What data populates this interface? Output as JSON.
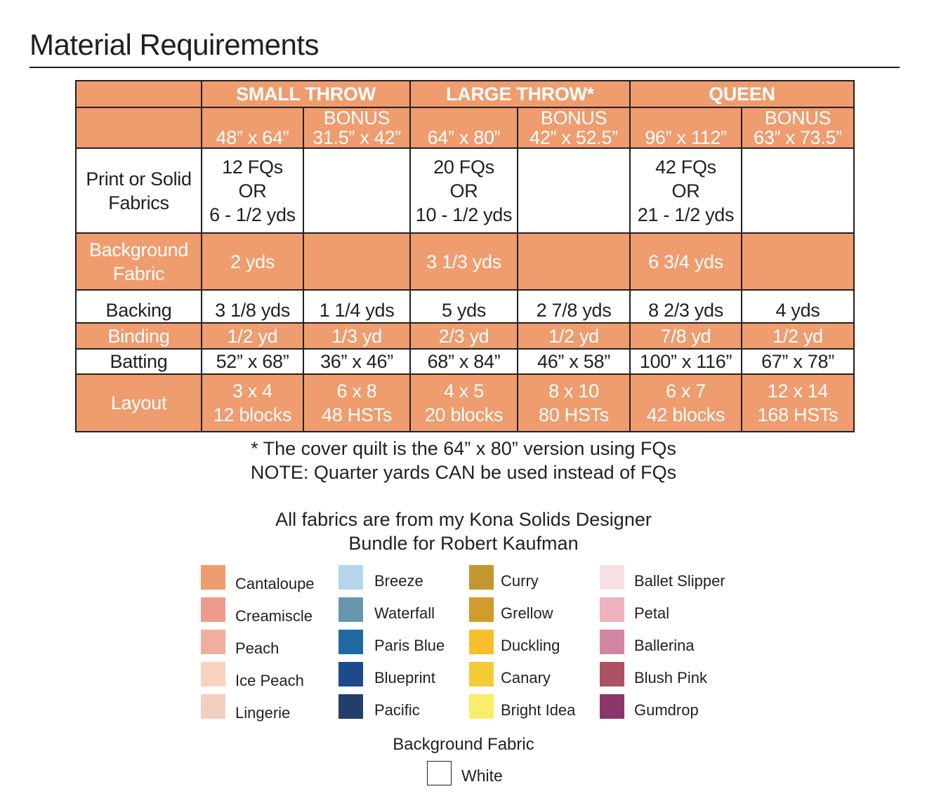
{
  "title": "Material Requirements",
  "table": {
    "groups": [
      "SMALL THROW",
      "LARGE THROW*",
      "QUEEN"
    ],
    "sizes": [
      {
        "bonus": "",
        "size": "48” x 64”"
      },
      {
        "bonus": "BONUS",
        "size": "31.5” x 42”"
      },
      {
        "bonus": "",
        "size": "64” x 80”"
      },
      {
        "bonus": "BONUS",
        "size": "42” x 52.5”"
      },
      {
        "bonus": "",
        "size": "96” x 112”"
      },
      {
        "bonus": "BONUS",
        "size": "63” x 73.5”"
      }
    ],
    "rows": [
      {
        "label": [
          "Print or Solid",
          "Fabrics"
        ],
        "cells": [
          [
            "12 FQs",
            "OR",
            "6 - 1/2 yds"
          ],
          [],
          [
            "20 FQs",
            "OR",
            "10 - 1/2 yds"
          ],
          [],
          [
            "42 FQs",
            "OR",
            "21 - 1/2 yds"
          ],
          []
        ]
      },
      {
        "label": [
          "Background",
          "Fabric"
        ],
        "cells": [
          [
            "2 yds"
          ],
          [],
          [
            "3 1/3 yds"
          ],
          [],
          [
            "6 3/4 yds"
          ],
          []
        ]
      },
      {
        "label": [
          "Backing"
        ],
        "cells": [
          [
            "3 1/8 yds"
          ],
          [
            "1 1/4 yds"
          ],
          [
            "5 yds"
          ],
          [
            "2 7/8 yds"
          ],
          [
            "8 2/3 yds"
          ],
          [
            "4 yds"
          ]
        ]
      },
      {
        "label": [
          "Binding"
        ],
        "cells": [
          [
            "1/2 yd"
          ],
          [
            "1/3 yd"
          ],
          [
            "2/3 yd"
          ],
          [
            "1/2 yd"
          ],
          [
            "7/8 yd"
          ],
          [
            "1/2 yd"
          ]
        ]
      },
      {
        "label": [
          "Batting"
        ],
        "cells": [
          [
            "52” x 68”"
          ],
          [
            "36” x 46”"
          ],
          [
            "68” x 84”"
          ],
          [
            "46” x 58”"
          ],
          [
            "100” x 116”"
          ],
          [
            "67” x 78”"
          ]
        ]
      },
      {
        "label": [
          "Layout"
        ],
        "cells": [
          [
            "3 x 4",
            "12 blocks"
          ],
          [
            "6 x 8",
            "48 HSTs"
          ],
          [
            "4 x 5",
            "20 blocks"
          ],
          [
            "8 x 10",
            "80 HSTs"
          ],
          [
            "6 x 7",
            "42 blocks"
          ],
          [
            "12 x 14",
            "168 HSTs"
          ]
        ]
      }
    ]
  },
  "notes": [
    "* The cover quilt is the 64” x 80” version using FQs",
    "NOTE: Quarter yards CAN be used instead of FQs"
  ],
  "fabrics_heading": [
    "All fabrics are from my Kona Solids Designer",
    "Bundle for Robert Kaufman"
  ],
  "swatches": [
    [
      {
        "name": "Cantaloupe",
        "color": "#ef9c6e"
      },
      {
        "name": "Creamiscle",
        "color": "#ec9b8c"
      },
      {
        "name": "Peach",
        "color": "#f0aea0"
      },
      {
        "name": "Ice Peach",
        "color": "#f6d3bf"
      },
      {
        "name": "Lingerie",
        "color": "#f0cfbf"
      }
    ],
    [
      {
        "name": "Breeze",
        "color": "#b6d6ea"
      },
      {
        "name": "Waterfall",
        "color": "#6697ac"
      },
      {
        "name": "Paris Blue",
        "color": "#1f6aa3"
      },
      {
        "name": "Blueprint",
        "color": "#1c4a8a"
      },
      {
        "name": "Pacific",
        "color": "#223e6b"
      }
    ],
    [
      {
        "name": "Curry",
        "color": "#c4962f"
      },
      {
        "name": "Grellow",
        "color": "#d39b2c"
      },
      {
        "name": "Duckling",
        "color": "#f7bf2a"
      },
      {
        "name": "Canary",
        "color": "#f4ca36"
      },
      {
        "name": "Bright Idea",
        "color": "#f9ee6c"
      }
    ],
    [
      {
        "name": "Ballet Slipper",
        "color": "#f6e0e4"
      },
      {
        "name": "Petal",
        "color": "#efb3c0"
      },
      {
        "name": "Ballerina",
        "color": "#d385a4"
      },
      {
        "name": "Blush Pink",
        "color": "#ad5262"
      },
      {
        "name": "Gumdrop",
        "color": "#8c356b"
      }
    ]
  ],
  "background": {
    "heading": "Background Fabric",
    "name": "White",
    "color": "#ffffff"
  }
}
